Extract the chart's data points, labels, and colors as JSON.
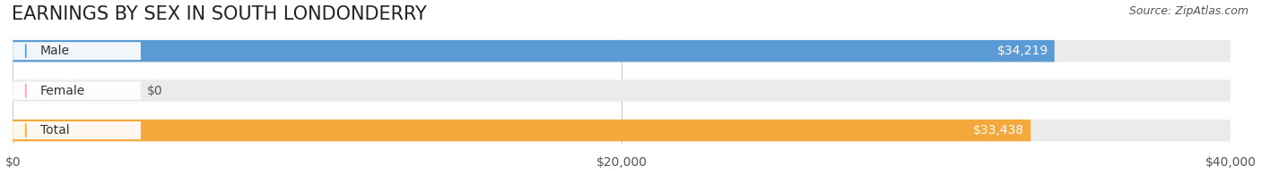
{
  "title": "EARNINGS BY SEX IN SOUTH LONDONDERRY",
  "source": "Source: ZipAtlas.com",
  "categories": [
    "Male",
    "Female",
    "Total"
  ],
  "values": [
    34219,
    0,
    33438
  ],
  "bar_colors": [
    "#5b9bd5",
    "#f4a0b5",
    "#f5a83c"
  ],
  "bar_bg_color": "#ebebeb",
  "label_colors": [
    "#ffffff",
    "#555555",
    "#ffffff"
  ],
  "value_labels": [
    "$34,219",
    "$0",
    "$33,438"
  ],
  "xlim": [
    0,
    40000
  ],
  "xticks": [
    0,
    20000,
    40000
  ],
  "xticklabels": [
    "$0",
    "$20,000",
    "$40,000"
  ],
  "title_fontsize": 15,
  "tick_fontsize": 10,
  "bar_label_fontsize": 10,
  "value_label_fontsize": 10,
  "background_color": "#ffffff",
  "bar_height": 0.55,
  "source_fontsize": 9
}
